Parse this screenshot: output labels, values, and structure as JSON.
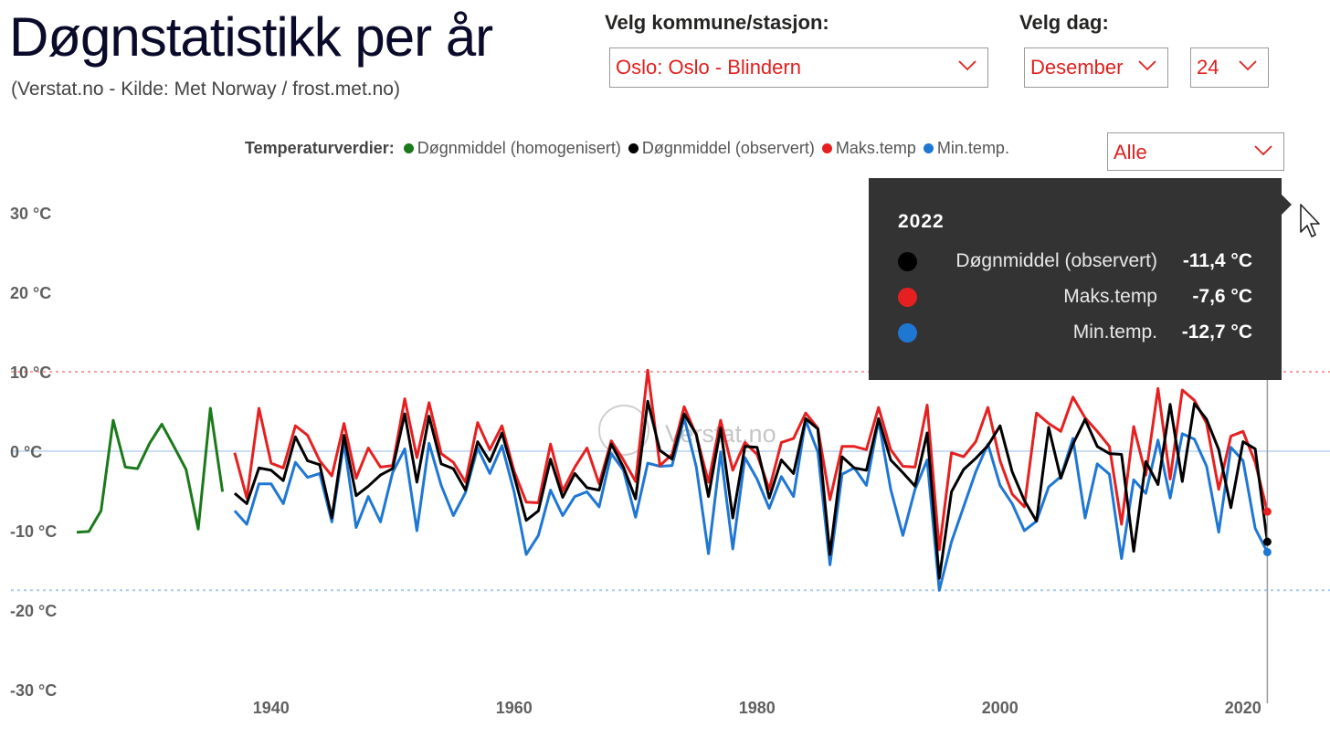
{
  "header": {
    "title": "Døgnstatistikk per år",
    "subtitle": "(Verstat.no - Kilde: Met Norway / frost.met.no)"
  },
  "controls": {
    "station_label": "Velg kommune/stasjon:",
    "station_value": "Oslo: Oslo - Blindern",
    "day_label": "Velg dag:",
    "month_value": "Desember",
    "day_value": "24",
    "filter_value": "Alle"
  },
  "legend": {
    "title": "Temperaturverdier:",
    "items": [
      {
        "label": "Døgnmiddel (homogenisert)",
        "color": "#1a7a1a"
      },
      {
        "label": "Døgnmiddel (observert)",
        "color": "#000000"
      },
      {
        "label": "Maks.temp",
        "color": "#e62020"
      },
      {
        "label": "Min.temp.",
        "color": "#1f77d4"
      }
    ]
  },
  "watermark": "Verstat.no",
  "tooltip": {
    "year": "2022",
    "rows": [
      {
        "label": "Døgnmiddel (observert)",
        "value": "-11,4 °C",
        "color": "#000000"
      },
      {
        "label": "Maks.temp",
        "value": "-7,6 °C",
        "color": "#e62020"
      },
      {
        "label": "Min.temp.",
        "value": "-12,7 °C",
        "color": "#1f77d4"
      }
    ]
  },
  "chart_data": {
    "type": "line",
    "title": "",
    "xlabel": "",
    "ylabel": "",
    "xlim": [
      1924,
      2024
    ],
    "ylim": [
      -30,
      30
    ],
    "y_ticks": [
      30,
      20,
      10,
      0,
      -10,
      -20,
      -30
    ],
    "y_tick_labels": [
      "30 °C",
      "20 °C",
      "10 °C",
      "0 °C",
      "-10 °C",
      "-20 °C",
      "-30 °C"
    ],
    "x_ticks": [
      1940,
      1960,
      1980,
      2000,
      2020
    ],
    "x_tick_labels": [
      "1940",
      "1960",
      "1980",
      "2000",
      "2020"
    ],
    "grid": false,
    "legend_position": "top",
    "reference_lines": [
      {
        "y": 10,
        "color": "#f4a0a0",
        "style": "dotted"
      },
      {
        "y": 0,
        "color": "#c9def4",
        "style": "solid"
      },
      {
        "y": -17.5,
        "color": "#a9cbee",
        "style": "dotted"
      }
    ],
    "highlight_x": 2022,
    "series": [
      {
        "name": "Døgnmiddel (homogenisert)",
        "color": "#1a7a1a",
        "x": [
          1924,
          1925,
          1926,
          1927,
          1928,
          1929,
          1930,
          1931,
          1932,
          1933,
          1934,
          1935,
          1936
        ],
        "y": [
          -10.2,
          -10.1,
          -7.5,
          3.9,
          -2.0,
          -2.2,
          1.0,
          3.4,
          0.6,
          -2.3,
          -9.8,
          5.4,
          -5.1
        ]
      },
      {
        "name": "Døgnmiddel (observert)",
        "color": "#000000",
        "x": [
          1937,
          1938,
          1939,
          1940,
          1941,
          1942,
          1943,
          1944,
          1945,
          1946,
          1947,
          1948,
          1949,
          1950,
          1951,
          1952,
          1953,
          1954,
          1955,
          1956,
          1957,
          1958,
          1959,
          1960,
          1961,
          1962,
          1963,
          1964,
          1965,
          1966,
          1967,
          1968,
          1969,
          1970,
          1971,
          1972,
          1973,
          1974,
          1975,
          1976,
          1977,
          1978,
          1979,
          1980,
          1981,
          1982,
          1983,
          1984,
          1985,
          1986,
          1987,
          1988,
          1989,
          1990,
          1991,
          1992,
          1993,
          1994,
          1995,
          1996,
          1997,
          1998,
          1999,
          2000,
          2001,
          2002,
          2003,
          2004,
          2005,
          2006,
          2007,
          2008,
          2009,
          2010,
          2011,
          2012,
          2013,
          2014,
          2015,
          2016,
          2017,
          2018,
          2019,
          2020,
          2021,
          2022
        ],
        "y": [
          -5.3,
          -6.6,
          -2.1,
          -2.4,
          -3.7,
          1.8,
          -1.2,
          -1.7,
          -8.4,
          2.0,
          -5.6,
          -4.4,
          -3.0,
          -2.2,
          4.7,
          -3.9,
          4.4,
          -1.6,
          -2.2,
          -4.9,
          1.2,
          -1.3,
          2.3,
          -3.1,
          -8.7,
          -7.5,
          -1.0,
          -5.8,
          -2.8,
          -4.6,
          -4.9,
          0.9,
          -2.0,
          -6.0,
          6.3,
          0.1,
          -1.0,
          4.7,
          2.1,
          -5.7,
          2.9,
          -8.4,
          0.6,
          0.5,
          -5.9,
          -1.1,
          -2.8,
          4.1,
          2.8,
          -13.0,
          -0.7,
          -2.1,
          -2.4,
          4.1,
          -1.1,
          -2.7,
          -4.4,
          2.3,
          -16.0,
          -5.1,
          -2.3,
          -0.9,
          0.7,
          3.2,
          -2.6,
          -6.2,
          -8.8,
          3.0,
          -3.4,
          0.9,
          4.0,
          0.6,
          -0.3,
          -0.4,
          -12.6,
          -1.3,
          -4.2,
          5.9,
          -3.8,
          6.0,
          4.0,
          0.2,
          -7.1,
          1.2,
          0.3,
          -11.4
        ]
      },
      {
        "name": "Maks.temp",
        "color": "#e62020",
        "x": [
          1937,
          1938,
          1939,
          1940,
          1941,
          1942,
          1943,
          1944,
          1945,
          1946,
          1947,
          1948,
          1949,
          1950,
          1951,
          1952,
          1953,
          1954,
          1955,
          1956,
          1957,
          1958,
          1959,
          1960,
          1961,
          1962,
          1963,
          1964,
          1965,
          1966,
          1967,
          1968,
          1969,
          1970,
          1971,
          1972,
          1973,
          1974,
          1975,
          1976,
          1977,
          1978,
          1979,
          1980,
          1981,
          1982,
          1983,
          1984,
          1985,
          1986,
          1987,
          1988,
          1989,
          1990,
          1991,
          1992,
          1993,
          1994,
          1995,
          1996,
          1997,
          1998,
          1999,
          2000,
          2001,
          2002,
          2003,
          2004,
          2005,
          2006,
          2007,
          2008,
          2009,
          2010,
          2011,
          2012,
          2013,
          2014,
          2015,
          2016,
          2017,
          2018,
          2019,
          2020,
          2021,
          2022
        ],
        "y": [
          -0.2,
          -5.9,
          5.4,
          -1.5,
          -2.1,
          3.2,
          2.0,
          -1.2,
          -3.1,
          3.5,
          -3.4,
          0.4,
          -2.0,
          -1.8,
          6.6,
          -0.8,
          6.1,
          -0.3,
          -1.4,
          -3.9,
          3.6,
          0.2,
          3.2,
          -2.5,
          -6.4,
          -6.5,
          0.9,
          -5.0,
          -2.0,
          0.4,
          -4.1,
          1.3,
          -1.1,
          -3.8,
          10.2,
          -1.8,
          -0.4,
          5.6,
          2.0,
          -3.9,
          3.9,
          -2.4,
          1.1,
          -0.4,
          -4.8,
          1.1,
          1.6,
          4.8,
          2.9,
          -6.1,
          0.6,
          0.6,
          0.2,
          5.5,
          0.2,
          -1.9,
          -2.0,
          5.8,
          -12.4,
          -0.2,
          -0.7,
          1.2,
          5.5,
          -1.2,
          -5.4,
          -7.0,
          4.8,
          3.5,
          2.5,
          6.8,
          4.2,
          2.5,
          0.6,
          -9.2,
          3.1,
          -3.0,
          7.9,
          -3.5,
          7.7,
          6.4,
          3.5,
          -4.8,
          1.9,
          2.5,
          -1.4,
          -7.6
        ]
      },
      {
        "name": "Min.temp.",
        "color": "#1f77d4",
        "x": [
          1937,
          1938,
          1939,
          1940,
          1941,
          1942,
          1943,
          1944,
          1945,
          1946,
          1947,
          1948,
          1949,
          1950,
          1951,
          1952,
          1953,
          1954,
          1955,
          1956,
          1957,
          1958,
          1959,
          1960,
          1961,
          1962,
          1963,
          1964,
          1965,
          1966,
          1967,
          1968,
          1969,
          1970,
          1971,
          1972,
          1973,
          1974,
          1975,
          1976,
          1977,
          1978,
          1979,
          1980,
          1981,
          1982,
          1983,
          1984,
          1985,
          1986,
          1987,
          1988,
          1989,
          1990,
          1991,
          1992,
          1993,
          1994,
          1995,
          1996,
          1997,
          1998,
          1999,
          2000,
          2001,
          2002,
          2003,
          2004,
          2005,
          2006,
          2007,
          2008,
          2009,
          2010,
          2011,
          2012,
          2013,
          2014,
          2015,
          2016,
          2017,
          2018,
          2019,
          2020,
          2021,
          2022
        ],
        "y": [
          -7.5,
          -9.2,
          -4.1,
          -4.1,
          -6.6,
          -1.4,
          -3.3,
          -2.8,
          -8.9,
          1.1,
          -9.6,
          -5.7,
          -8.9,
          -2.7,
          0.3,
          -10.0,
          1.0,
          -4.3,
          -8.1,
          -5.2,
          0.4,
          -2.8,
          0.7,
          -5.1,
          -13.0,
          -10.6,
          -4.9,
          -8.1,
          -5.7,
          -5.1,
          -7.0,
          -0.3,
          -2.4,
          -8.3,
          -1.5,
          -1.9,
          -1.8,
          4.2,
          -2.0,
          -12.9,
          -0.1,
          -12.3,
          -0.8,
          -3.5,
          -7.2,
          -3.2,
          -5.7,
          3.9,
          -0.1,
          -14.3,
          -2.9,
          -2.1,
          -4.3,
          3.9,
          -4.8,
          -10.6,
          -4.8,
          -1.1,
          -17.5,
          -11.4,
          -7.0,
          -2.6,
          0.9,
          -4.3,
          -6.6,
          -10.0,
          -8.8,
          -4.5,
          -3.2,
          1.6,
          -8.4,
          -1.6,
          -2.9,
          -13.5,
          -3.6,
          -5.3,
          1.4,
          -5.9,
          2.2,
          1.5,
          -1.9,
          -10.2,
          0.5,
          -1.2,
          -9.7,
          -12.7
        ]
      }
    ]
  }
}
